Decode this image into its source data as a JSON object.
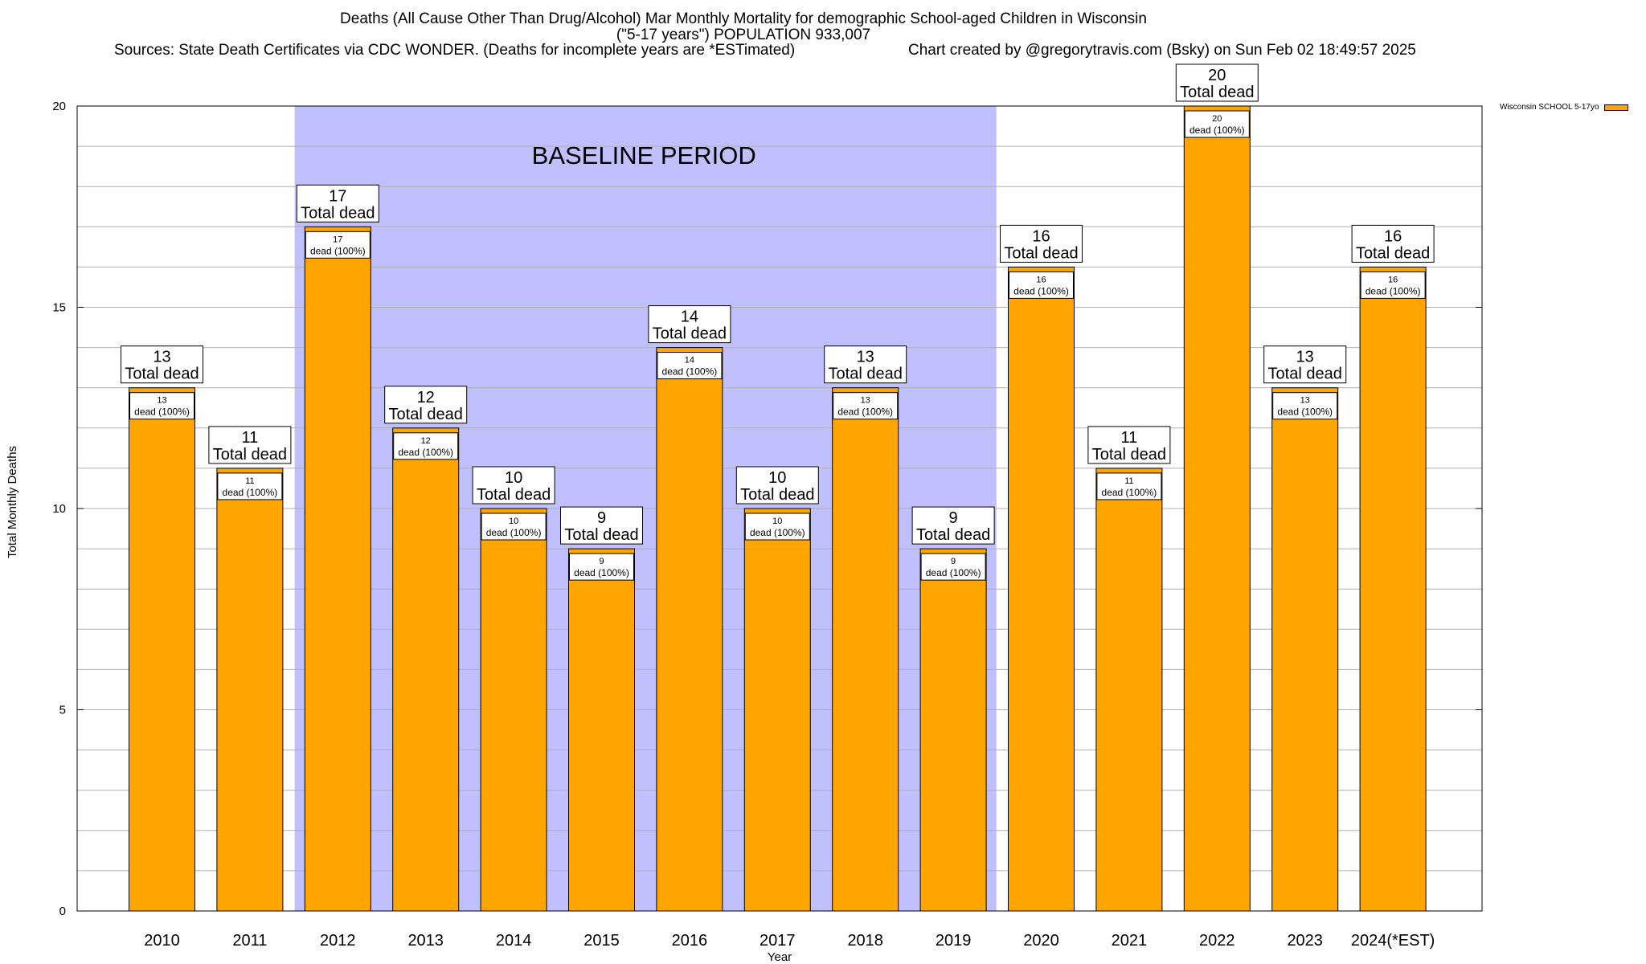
{
  "title": {
    "line1": "Deaths (All Cause Other Than Drug/Alcohol) Mar Monthly Mortality for demographic School-aged Children in Wisconsin",
    "line2": "(\"5-17 years\") POPULATION 933,007",
    "sources": "Sources: State Death Certificates via CDC WONDER. (Deaths for incomplete years are *ESTimated)",
    "credit": "Chart created by @gregorytravis.com (Bsky) on Sun Feb 02 18:49:57 2025"
  },
  "colors": {
    "bar": "#FFA500",
    "baseline": "#C0C0FF",
    "grid": "#B0B0B0"
  },
  "chart_data": {
    "type": "bar",
    "title": "Deaths (All Cause Other Than Drug/Alcohol) Mar Monthly Mortality for demographic School-aged Children in Wisconsin",
    "xlabel": "Year",
    "ylabel": "Total Monthly Deaths",
    "ylim": [
      0,
      20
    ],
    "yticks": [
      0,
      5,
      10,
      15,
      20
    ],
    "categories": [
      "2010",
      "2011",
      "2012",
      "2013",
      "2014",
      "2015",
      "2016",
      "2017",
      "2018",
      "2019",
      "2020",
      "2021",
      "2022",
      "2023",
      "2024(*EST)"
    ],
    "series": [
      {
        "name": "Wisconsin SCHOOL 5-17yo",
        "values": [
          13,
          11,
          17,
          12,
          10,
          9,
          14,
          10,
          13,
          9,
          16,
          11,
          20,
          13,
          16
        ]
      }
    ],
    "total_label_suffix": "Total dead",
    "inner_label_suffix": "dead (100%)",
    "baseline_period": {
      "label": "BASELINE PERIOD",
      "start": "2012",
      "end": "2019"
    },
    "legend": "Wisconsin SCHOOL 5-17yo",
    "legend_position": "top-right"
  }
}
